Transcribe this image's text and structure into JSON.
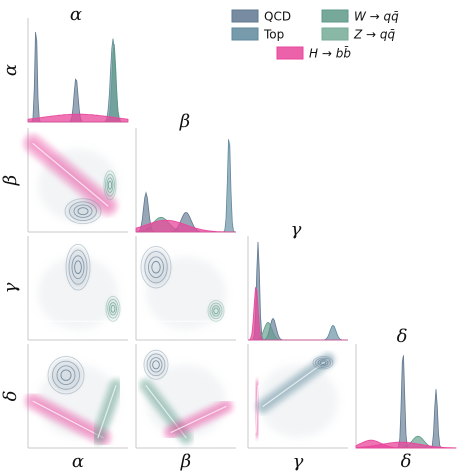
{
  "chart_data": {
    "type": "pair-grid",
    "variables": [
      "α",
      "β",
      "γ",
      "δ"
    ],
    "legend": {
      "placement": "top-right",
      "entries": [
        {
          "key": "qcd",
          "label": "QCD",
          "color": "#5f7890"
        },
        {
          "key": "top",
          "label": "Top",
          "color": "#5f8a9c"
        },
        {
          "key": "w",
          "label": "W → qq̄",
          "color": "#5f9a8a"
        },
        {
          "key": "z",
          "label": "Z → qq̄",
          "color": "#76ac97"
        },
        {
          "key": "h",
          "label": "H → bb̄",
          "color": "#e8469b"
        }
      ]
    },
    "diagonal": [
      {
        "var": "α",
        "peaks": [
          {
            "series": "qcd",
            "x": 0.08,
            "w": 0.012,
            "h": 1.0
          },
          {
            "series": "qcd",
            "x": 0.48,
            "w": 0.02,
            "h": 0.45
          },
          {
            "series": "top",
            "x": 0.85,
            "w": 0.025,
            "h": 0.85
          },
          {
            "series": "w",
            "x": 0.86,
            "w": 0.02,
            "h": 0.8
          },
          {
            "series": "h",
            "x": 0.5,
            "w": 0.35,
            "h": 0.08
          }
        ]
      },
      {
        "var": "β",
        "peaks": [
          {
            "series": "qcd",
            "x": 0.1,
            "w": 0.025,
            "h": 0.4
          },
          {
            "series": "qcd",
            "x": 0.5,
            "w": 0.05,
            "h": 0.2
          },
          {
            "series": "top",
            "x": 0.93,
            "w": 0.015,
            "h": 1.0
          },
          {
            "series": "w",
            "x": 0.25,
            "w": 0.08,
            "h": 0.15
          },
          {
            "series": "h",
            "x": 0.3,
            "w": 0.2,
            "h": 0.12
          }
        ]
      },
      {
        "var": "γ",
        "peaks": [
          {
            "series": "qcd",
            "x": 0.1,
            "w": 0.015,
            "h": 1.0
          },
          {
            "series": "qcd",
            "x": 0.25,
            "w": 0.03,
            "h": 0.22
          },
          {
            "series": "top",
            "x": 0.85,
            "w": 0.03,
            "h": 0.15
          },
          {
            "series": "w",
            "x": 0.2,
            "w": 0.04,
            "h": 0.18
          },
          {
            "series": "h",
            "x": 0.08,
            "w": 0.02,
            "h": 0.55
          }
        ]
      },
      {
        "var": "δ",
        "peaks": [
          {
            "series": "qcd",
            "x": 0.47,
            "w": 0.015,
            "h": 1.0
          },
          {
            "series": "qcd",
            "x": 0.8,
            "w": 0.015,
            "h": 0.6
          },
          {
            "series": "w",
            "x": 0.62,
            "w": 0.06,
            "h": 0.12
          },
          {
            "series": "h",
            "x": 0.15,
            "w": 0.1,
            "h": 0.08
          },
          {
            "series": "h",
            "x": 0.45,
            "w": 0.2,
            "h": 0.06
          }
        ]
      }
    ]
  }
}
